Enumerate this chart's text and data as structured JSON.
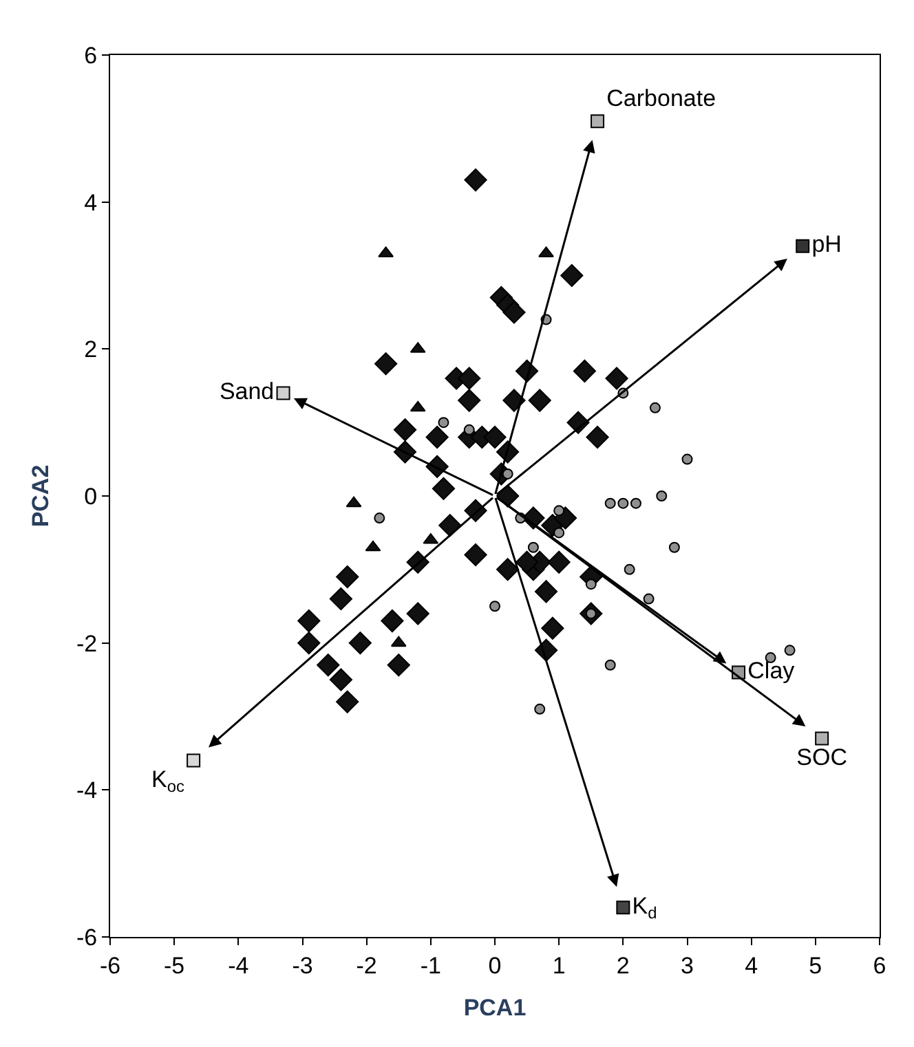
{
  "chart_data": {
    "type": "scatter",
    "xlabel": "PCA1",
    "ylabel": "PCA2",
    "xlim": [
      -6,
      6
    ],
    "xticks": [
      -6,
      -5,
      -4,
      -3,
      -2,
      -1,
      0,
      1,
      2,
      3,
      4,
      5,
      6
    ],
    "ylim": [
      -6,
      6
    ],
    "yticks": [
      -6,
      -4,
      -2,
      0,
      2,
      4,
      6
    ],
    "series": [
      {
        "marker": "diamond",
        "color": "#111111",
        "x": [
          -0.3,
          1.2,
          0.1,
          0.2,
          0.3,
          -1.7,
          -0.6,
          -0.4,
          -0.4,
          0.5,
          1.4,
          1.9,
          -1.4,
          -1.4,
          -0.9,
          -0.9,
          -0.8,
          -0.4,
          -0.2,
          0.0,
          0.3,
          0.7,
          1.3,
          1.6,
          0.2,
          0.1,
          0.2,
          -0.3,
          -0.7,
          -1.2,
          -0.3,
          -2.9,
          -2.3,
          -2.4,
          -1.6,
          -1.2,
          -2.1,
          -2.9,
          -2.6,
          -2.4,
          -2.3,
          -1.5,
          0.2,
          0.6,
          0.7,
          0.8,
          0.9,
          1.1,
          1.5,
          0.9,
          0.8,
          1.5,
          0.6,
          0.5,
          1.0
        ],
        "values": [
          4.3,
          3.0,
          2.7,
          2.6,
          2.5,
          1.8,
          1.6,
          1.6,
          1.3,
          1.7,
          1.7,
          1.6,
          0.9,
          0.6,
          0.8,
          0.4,
          0.1,
          0.8,
          0.8,
          0.8,
          1.3,
          1.3,
          1.0,
          0.8,
          0.6,
          0.3,
          0.0,
          -0.2,
          -0.4,
          -0.9,
          -0.8,
          -1.7,
          -1.1,
          -1.4,
          -1.7,
          -1.6,
          -2.0,
          -2.0,
          -2.3,
          -2.5,
          -2.8,
          -2.3,
          -1.0,
          -1.0,
          -0.9,
          -1.3,
          -0.4,
          -0.3,
          -1.1,
          -1.8,
          -2.1,
          -1.6,
          -0.3,
          -0.9,
          -0.9
        ]
      },
      {
        "marker": "triangle",
        "color": "#111111",
        "x": [
          -1.7,
          0.8,
          -1.2,
          -1.2,
          -2.2,
          -1.9,
          -1.0,
          -1.5
        ],
        "values": [
          3.3,
          3.3,
          2.0,
          1.2,
          -0.1,
          -0.7,
          -0.6,
          -2.0
        ]
      },
      {
        "marker": "circle",
        "color": "#909090",
        "x": [
          0.8,
          -1.8,
          -0.8,
          0.0,
          0.2,
          -0.4,
          2.0,
          2.5,
          3.0,
          0.4,
          1.0,
          1.8,
          2.0,
          2.2,
          2.6,
          2.8,
          2.1,
          2.4,
          1.5,
          1.5,
          1.8,
          0.7,
          0.6,
          1.0,
          4.3,
          4.6
        ],
        "values": [
          2.4,
          -0.3,
          1.0,
          -1.5,
          0.3,
          0.9,
          1.4,
          1.2,
          0.5,
          -0.3,
          -0.5,
          -0.1,
          -0.1,
          -0.1,
          0.0,
          -0.7,
          -1.0,
          -1.4,
          -1.2,
          -1.6,
          -2.3,
          -2.9,
          -0.7,
          -0.2,
          -2.2,
          -2.1
        ]
      },
      {
        "marker": "square",
        "x": [
          1.6,
          4.8,
          -3.3,
          -4.7,
          3.8,
          5.1,
          2.0
        ],
        "values": [
          5.1,
          3.4,
          1.4,
          -3.6,
          -2.4,
          -3.3,
          -5.6
        ],
        "colors": [
          "#b0b0b0",
          "#333333",
          "#d0d0d0",
          "#d8d8d8",
          "#999999",
          "#b0b0b0",
          "#444444"
        ]
      }
    ],
    "annotations": [
      "Carbonate",
      "pH",
      "Sand",
      "K$_{oc}$",
      "Clay",
      "SOC",
      "K$_{d}$"
    ]
  }
}
